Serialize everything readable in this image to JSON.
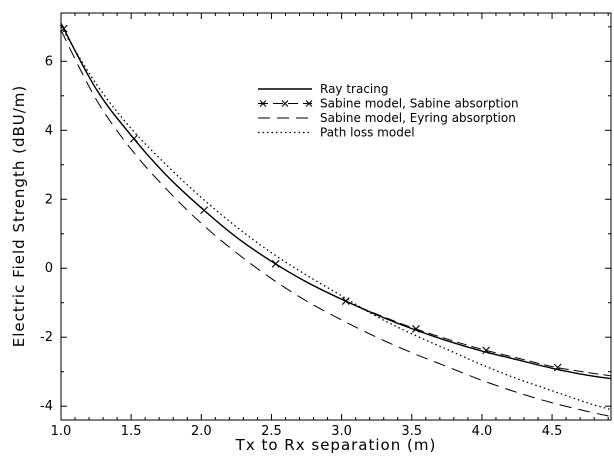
{
  "chart_data": {
    "type": "line",
    "xlabel": "Tx to Rx separation (m)",
    "ylabel": "Electric Field Strength (dBU/m)",
    "xlim": [
      1.0,
      4.92
    ],
    "ylim": [
      -4.4,
      7.4
    ],
    "x_ticks": [
      "1.0",
      "1.5",
      "2.0",
      "2.5",
      "3.0",
      "3.5",
      "4.0",
      "4.5"
    ],
    "y_ticks": [
      "-4",
      "-2",
      "0",
      "2",
      "4",
      "6"
    ],
    "legend_position": "top-right",
    "grid": false,
    "series": [
      {
        "name": "Ray tracing",
        "style": "solid",
        "x": [
          1.0,
          1.25,
          1.5,
          1.75,
          2.0,
          2.25,
          2.5,
          2.75,
          3.0,
          3.25,
          3.5,
          3.75,
          4.0,
          4.25,
          4.5,
          4.75,
          4.92
        ],
        "y": [
          7.1,
          5.2,
          3.85,
          2.7,
          1.75,
          0.9,
          0.2,
          -0.4,
          -0.9,
          -1.35,
          -1.75,
          -2.1,
          -2.4,
          -2.65,
          -2.9,
          -3.1,
          -3.2
        ]
      },
      {
        "name": "Sabine model, Sabine absorption",
        "style": "dash-x",
        "x": [
          1.0,
          1.25,
          1.5,
          1.75,
          2.0,
          2.25,
          2.5,
          2.75,
          3.0,
          3.25,
          3.5,
          3.75,
          4.0,
          4.25,
          4.5,
          4.75,
          4.92
        ],
        "y": [
          7.1,
          5.2,
          3.85,
          2.7,
          1.75,
          0.9,
          0.2,
          -0.4,
          -0.9,
          -1.33,
          -1.72,
          -2.05,
          -2.35,
          -2.6,
          -2.85,
          -3.02,
          -3.12
        ],
        "marker_x": [
          1.02,
          1.52,
          2.02,
          2.53,
          3.03,
          3.53,
          4.03,
          4.54
        ]
      },
      {
        "name": "Sabine model, Eyring absorption",
        "style": "dashed",
        "x": [
          1.0,
          1.25,
          1.5,
          1.75,
          2.0,
          2.25,
          2.5,
          2.75,
          3.0,
          3.25,
          3.5,
          3.75,
          4.0,
          4.25,
          4.5,
          4.75,
          4.92
        ],
        "y": [
          6.9,
          4.9,
          3.45,
          2.3,
          1.3,
          0.45,
          -0.3,
          -0.95,
          -1.5,
          -2.0,
          -2.45,
          -2.85,
          -3.25,
          -3.6,
          -3.9,
          -4.15,
          -4.3
        ]
      },
      {
        "name": "Path loss model",
        "style": "dotted",
        "x": [
          1.0,
          1.25,
          1.5,
          1.75,
          2.0,
          2.25,
          2.5,
          2.75,
          3.0,
          3.25,
          3.5,
          3.75,
          4.0,
          4.25,
          4.5,
          4.75,
          4.92
        ],
        "y": [
          7.0,
          5.35,
          4.05,
          3.0,
          2.05,
          1.2,
          0.45,
          -0.2,
          -0.8,
          -1.4,
          -1.9,
          -2.35,
          -2.8,
          -3.2,
          -3.55,
          -3.9,
          -4.1
        ]
      }
    ]
  }
}
